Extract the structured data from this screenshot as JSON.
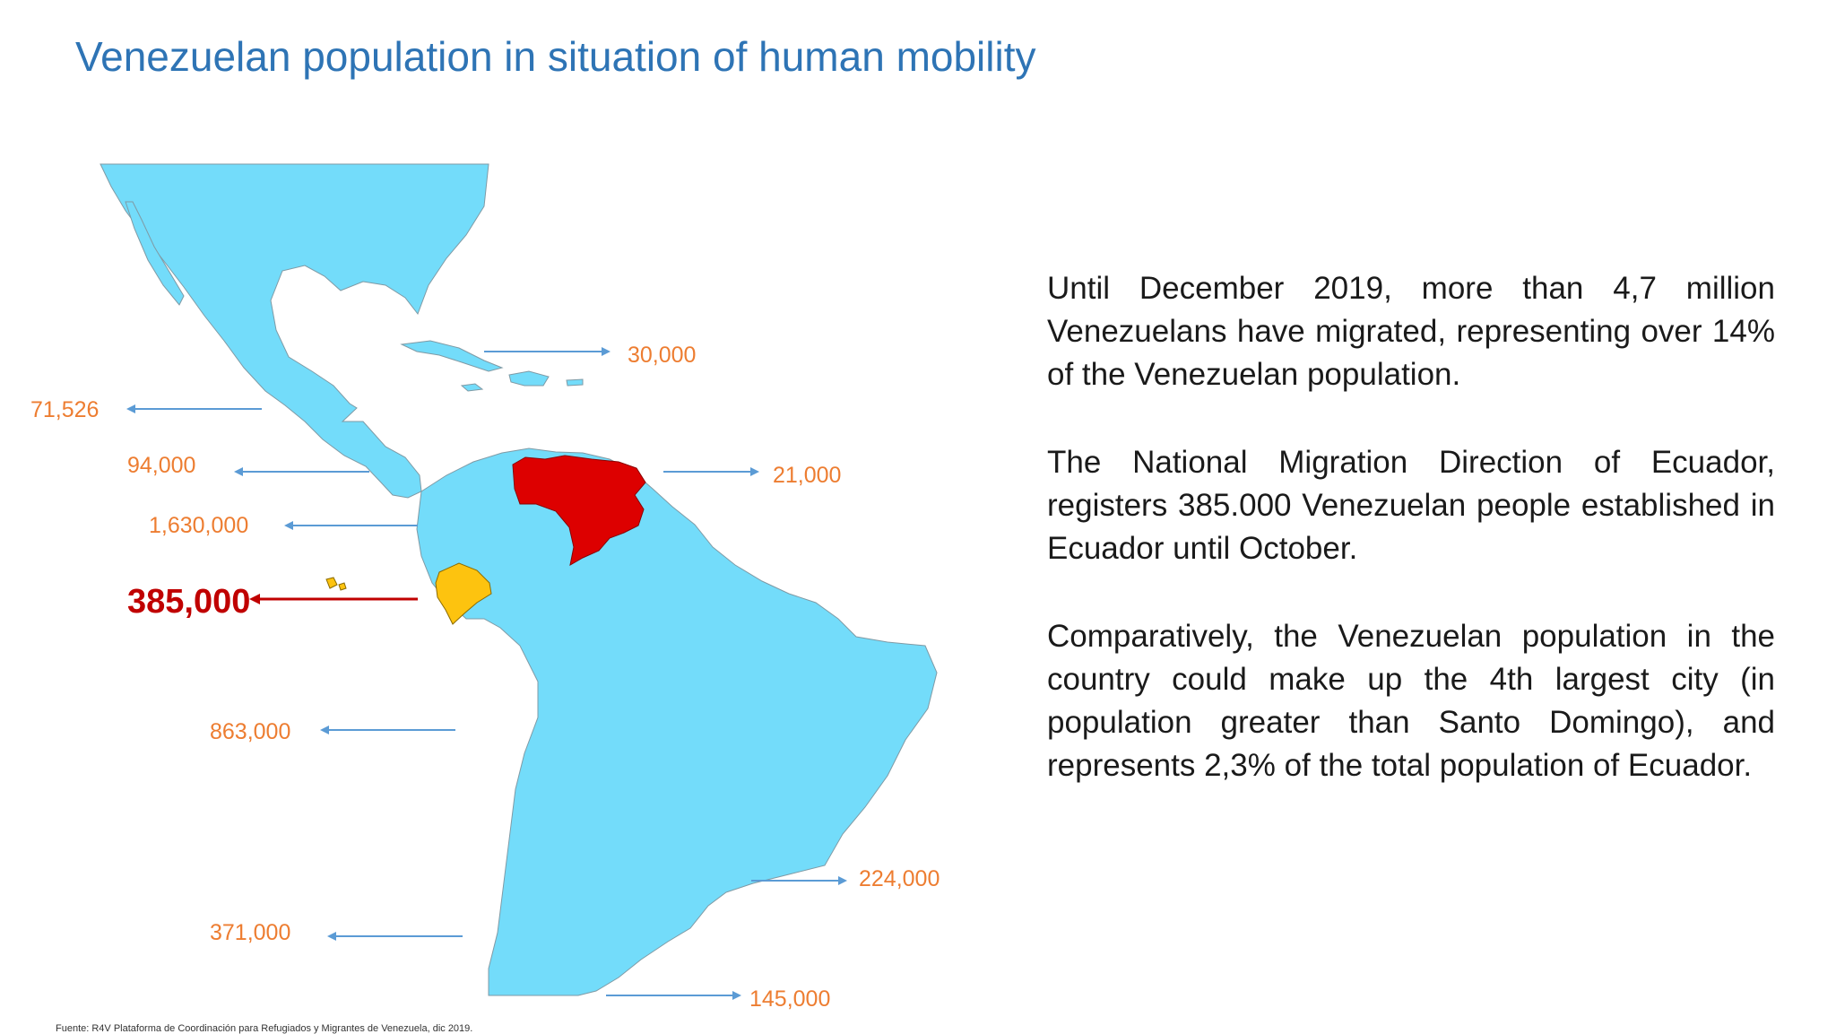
{
  "title": "Venezuelan population in  situation of human mobility",
  "map": {
    "labels": {
      "us": "30,000",
      "mexico": "71,526",
      "panama": "94,000",
      "colombia": "1,630,000",
      "ecuador": "385,000",
      "guyana": "21,000",
      "peru": "863,000",
      "brazil": "224,000",
      "chile": "371,000",
      "argentina": "145,000"
    },
    "colors": {
      "land": "#73dcfa",
      "venezuela": "#dd0000",
      "ecuador": "#fdc30f",
      "arrow": "#5b9bd5",
      "ecuador_arrow": "#c00000",
      "labels": "#ed7d31"
    }
  },
  "paragraphs": {
    "p1": "Until December 2019, more than 4,7 million Venezuelans have migrated, representing over 14% of the Venezuelan population.",
    "p2": "The National Migration Direction of Ecuador, registers 385.000 Venezuelan people established in Ecuador until October.",
    "p3": "Comparatively, the Venezuelan population in the country could make up the 4th largest city (in population greater than Santo Domingo), and represents 2,3% of the total population of Ecuador."
  },
  "source": "Fuente: R4V Plataforma de Coordinación para Refugiados y Migrantes de Venezuela, dic  2019."
}
